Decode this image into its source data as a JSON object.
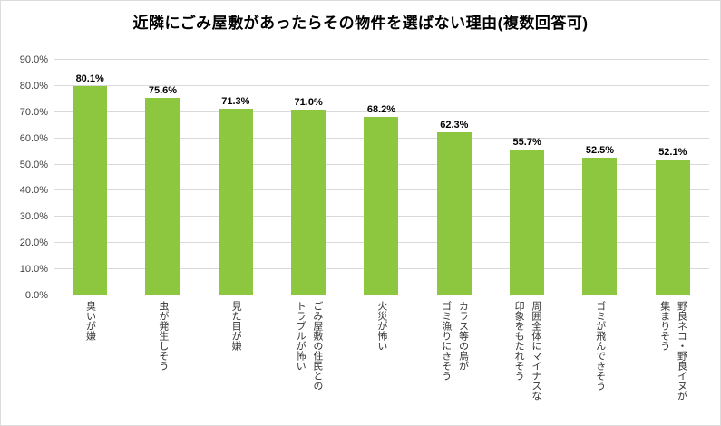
{
  "chart_data": {
    "type": "bar",
    "title": "近隣にごみ屋敷があったらその物件を選ばない理由(複数回答可)",
    "categories": [
      "臭いが嫌",
      "虫が発生しそう",
      "見た目が嫌",
      "ごみ屋敷の住民との\nトラブルが怖い",
      "火災が怖い",
      "カラス等の鳥が\nゴミ漁りにきそう",
      "周囲全体にマイナスな\n印象をもたれそう",
      "ゴミが飛んできそう",
      "野良ネコ・野良イヌが\n集まりそう"
    ],
    "values": [
      80.1,
      75.6,
      71.3,
      71.0,
      68.2,
      62.3,
      55.7,
      52.5,
      52.1
    ],
    "value_labels": [
      "80.1%",
      "75.6%",
      "71.3%",
      "71.0%",
      "68.2%",
      "62.3%",
      "55.7%",
      "52.5%",
      "52.1%"
    ],
    "ylim": [
      0,
      90
    ],
    "ytick_step": 10,
    "ytick_labels": [
      "0.0%",
      "10.0%",
      "20.0%",
      "30.0%",
      "40.0%",
      "50.0%",
      "60.0%",
      "70.0%",
      "80.0%",
      "90.0%"
    ],
    "xlabel": "",
    "ylabel": "",
    "grid": true,
    "legend": false,
    "bar_color": "#8dc63f",
    "gridline_color": "#d9d9d9",
    "axisline_color": "#a6a6a6"
  }
}
